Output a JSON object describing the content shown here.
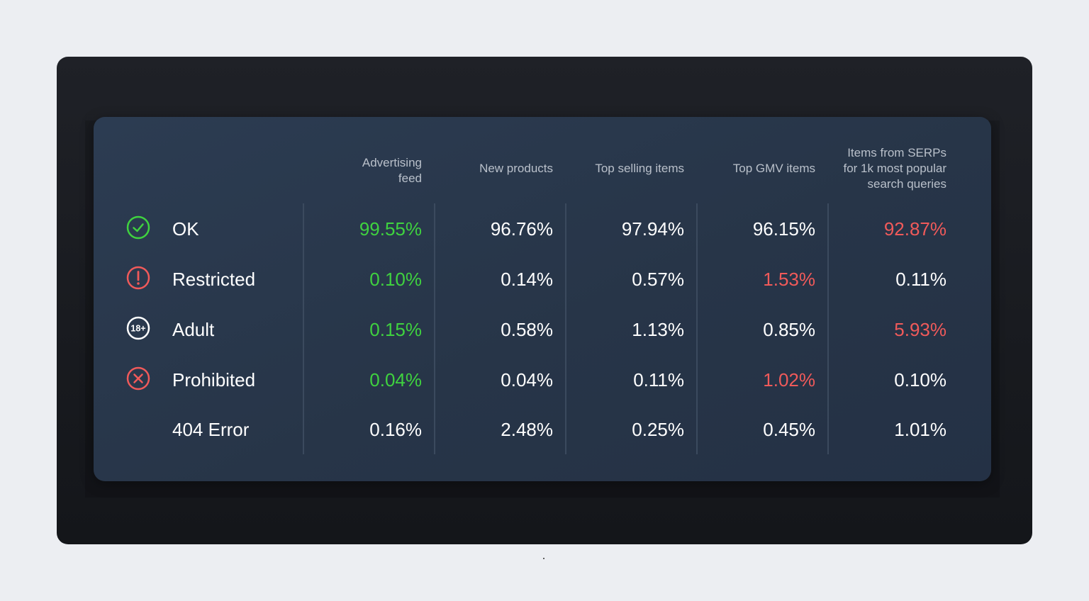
{
  "chart_data": {
    "type": "table",
    "columns": [
      "Advertising\nfeed",
      "New products",
      "Top selling items",
      "Top GMV items",
      "Items from SERPs\nfor 1k most popular\nsearch queries"
    ],
    "rows": [
      {
        "label": "OK",
        "icon": "check-circle-icon",
        "values": [
          "99.55%",
          "96.76%",
          "97.94%",
          "96.15%",
          "92.87%"
        ],
        "colors": [
          "green",
          "white",
          "white",
          "white",
          "red"
        ]
      },
      {
        "label": "Restricted",
        "icon": "exclamation-circle-icon",
        "values": [
          "0.10%",
          "0.14%",
          "0.57%",
          "1.53%",
          "0.11%"
        ],
        "colors": [
          "green",
          "white",
          "white",
          "red",
          "white"
        ]
      },
      {
        "label": "Adult",
        "icon": "eighteen-plus-icon",
        "values": [
          "0.15%",
          "0.58%",
          "1.13%",
          "0.85%",
          "5.93%"
        ],
        "colors": [
          "green",
          "white",
          "white",
          "white",
          "red"
        ]
      },
      {
        "label": "Prohibited",
        "icon": "x-circle-icon",
        "values": [
          "0.04%",
          "0.04%",
          "0.11%",
          "1.02%",
          "0.10%"
        ],
        "colors": [
          "green",
          "white",
          "white",
          "red",
          "white"
        ]
      },
      {
        "label": "404 Error",
        "icon": "",
        "values": [
          "0.16%",
          "2.48%",
          "0.25%",
          "0.45%",
          "1.01%"
        ],
        "colors": [
          "white",
          "white",
          "white",
          "white",
          "white"
        ]
      }
    ]
  },
  "colors": {
    "green": "#3fd23f",
    "red": "#f05a5a",
    "white": "#ffffff",
    "header_text": "#b9c0ca",
    "panel": "#2a394d",
    "frame": "#1b1d22",
    "page_background": "#eceef2"
  },
  "footer_mark": "."
}
